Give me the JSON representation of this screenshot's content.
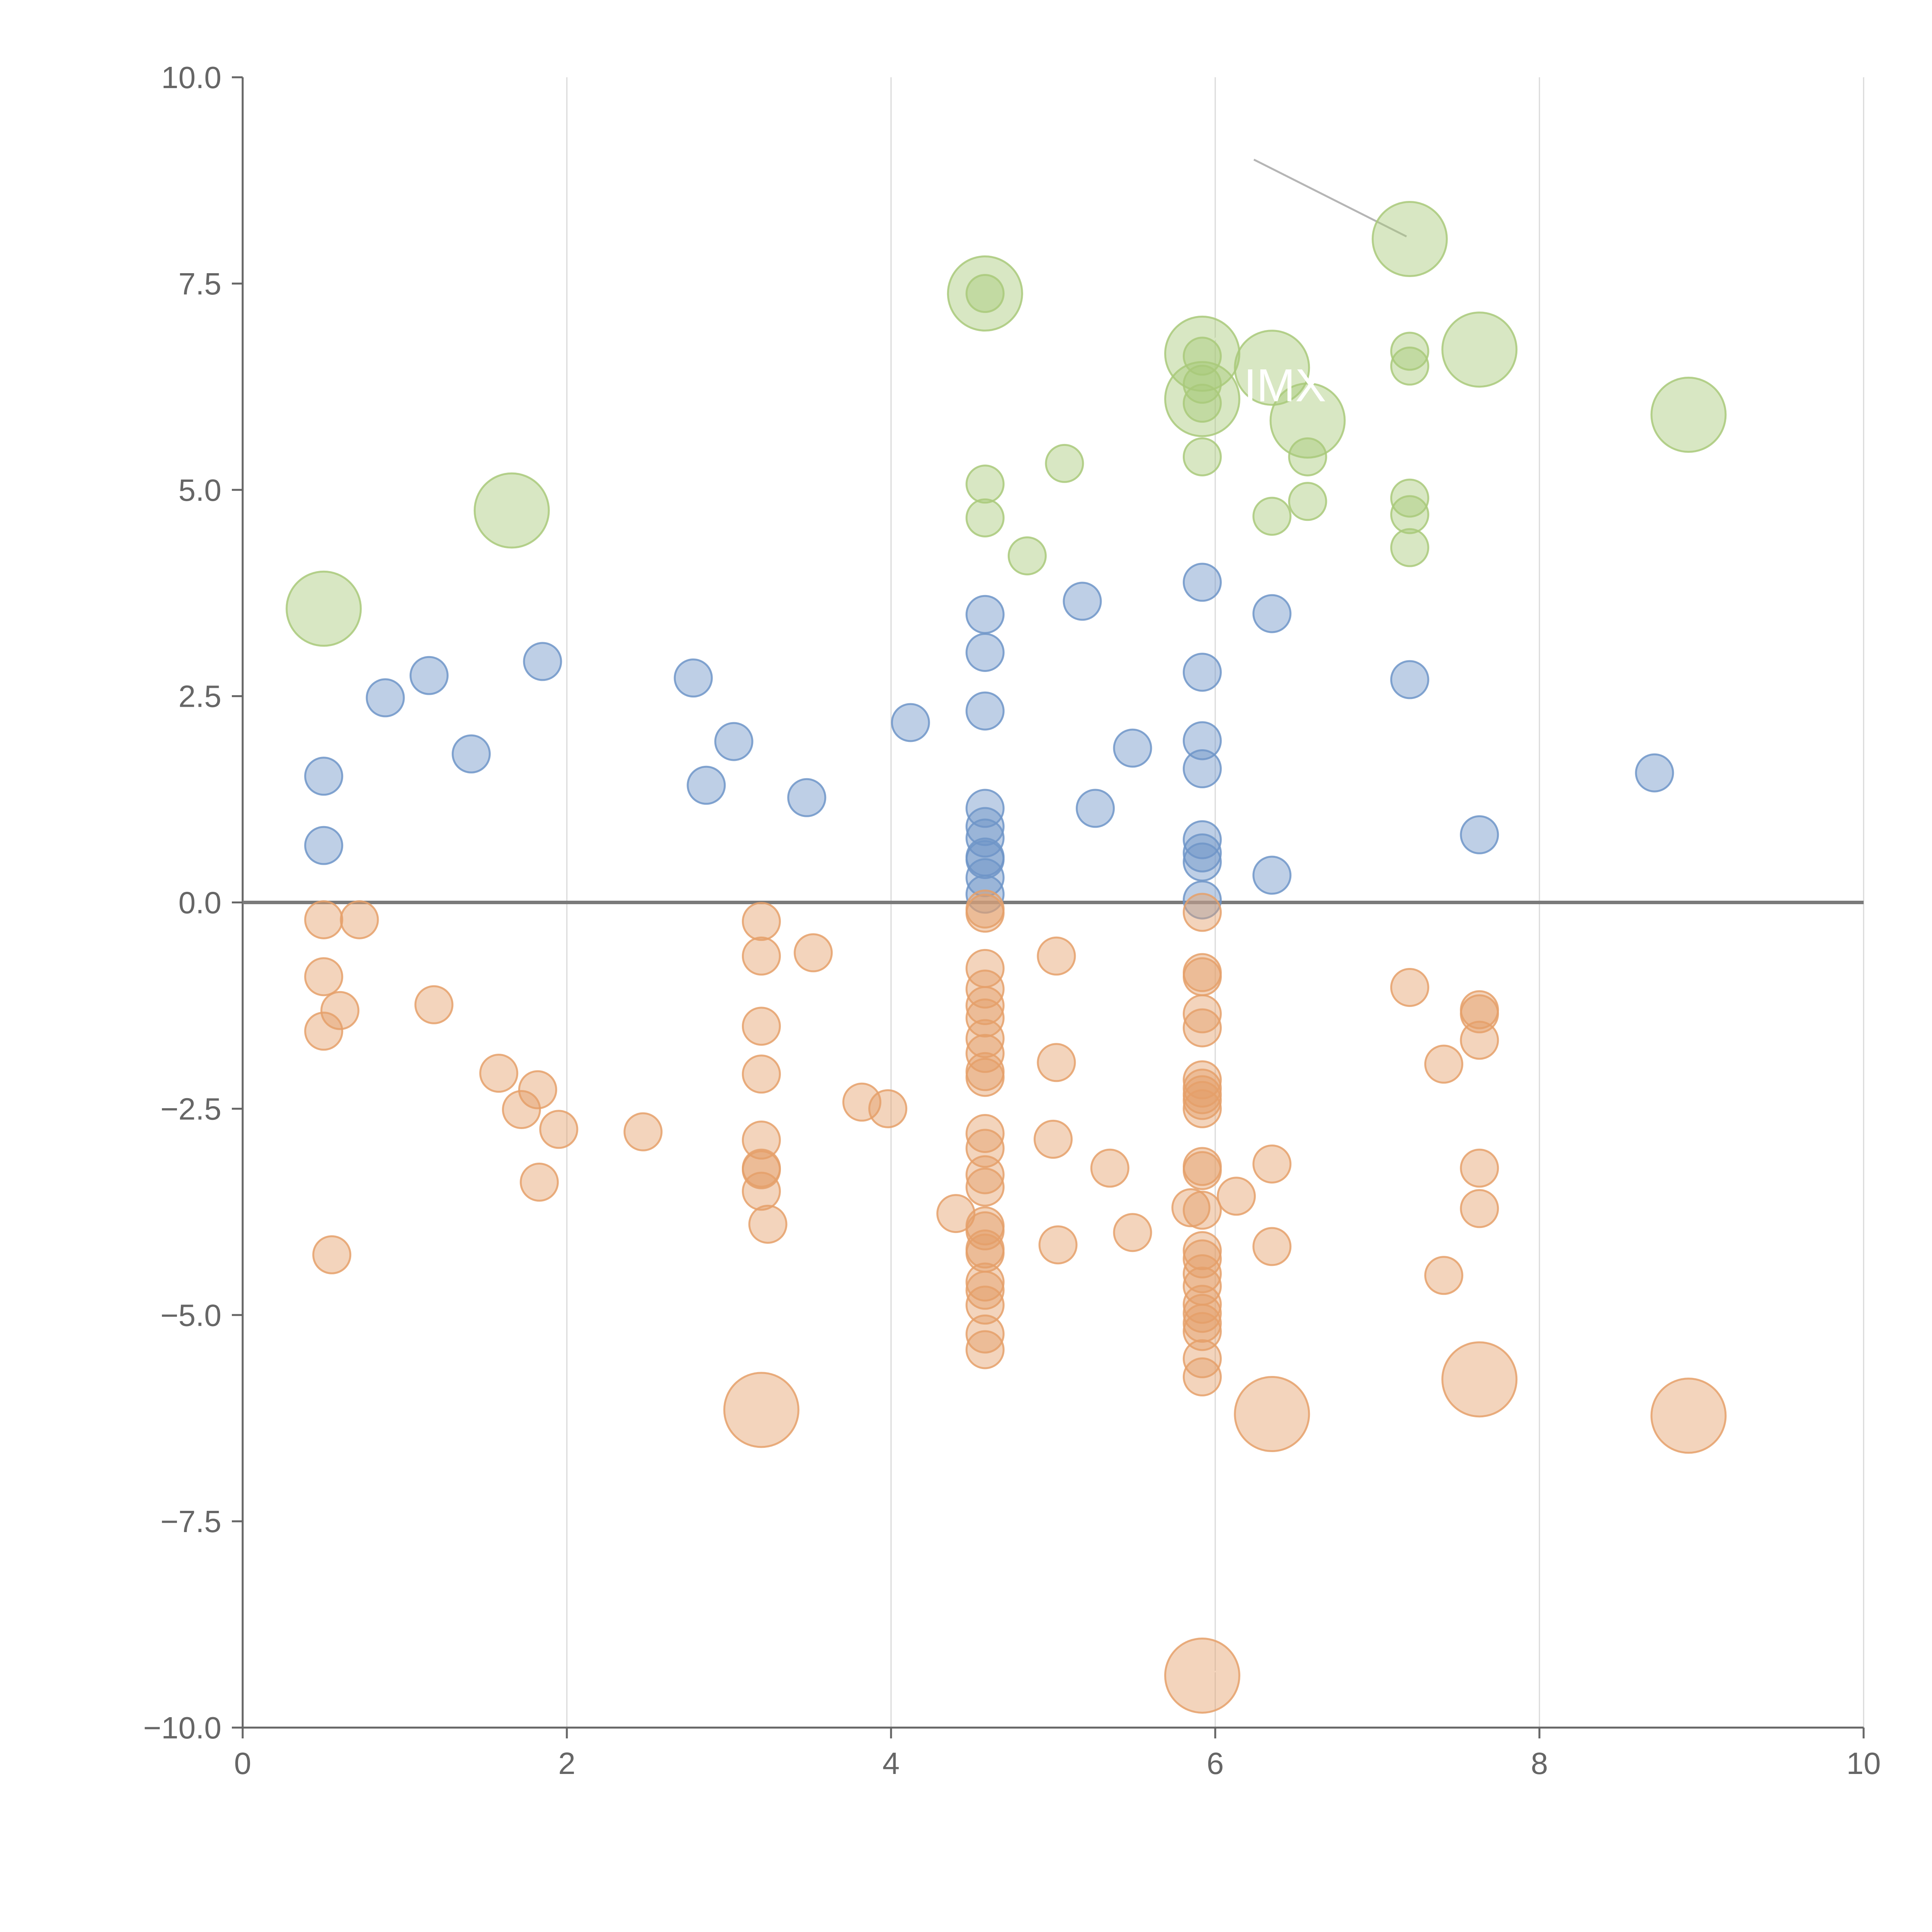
{
  "colors": {
    "blue": "#6f95c8",
    "green": "#a9c97a",
    "orange": "#e5a06a",
    "axis": "#666666",
    "grid": "#d9d9d9",
    "zero_line": "#7a7a7a",
    "leader": "#b5b5b5"
  },
  "chart_data": {
    "type": "scatter",
    "title": "",
    "xlabel": "",
    "ylabel": "",
    "xlim": [
      0,
      10
    ],
    "ylim": [
      -10,
      10
    ],
    "grid": "vertical",
    "legend": "none",
    "x_ticks": [
      "0",
      "2",
      "4",
      "6",
      "8",
      "10"
    ],
    "y_ticks": [
      "10.0",
      "7.5",
      "5.0",
      "2.5",
      "0.0",
      "−2.5",
      "−5.0",
      "−7.5",
      "−10.0"
    ],
    "series": [
      {
        "name": "blue",
        "color": "#6f95c8",
        "points": [
          {
            "x": 0.5,
            "y": 1.53,
            "s": 1
          },
          {
            "x": 0.5,
            "y": 0.69,
            "s": 1
          },
          {
            "x": 0.88,
            "y": 2.48,
            "s": 1
          },
          {
            "x": 1.15,
            "y": 2.75,
            "s": 1
          },
          {
            "x": 1.41,
            "y": 1.8,
            "s": 1
          },
          {
            "x": 1.85,
            "y": 2.92,
            "s": 1
          },
          {
            "x": 2.78,
            "y": 2.72,
            "s": 1
          },
          {
            "x": 2.86,
            "y": 1.42,
            "s": 1
          },
          {
            "x": 3.03,
            "y": 1.95,
            "s": 1
          },
          {
            "x": 3.48,
            "y": 1.27,
            "s": 1
          },
          {
            "x": 4.12,
            "y": 2.18,
            "s": 1
          },
          {
            "x": 4.58,
            "y": 3.49,
            "s": 1
          },
          {
            "x": 4.58,
            "y": 3.03,
            "s": 1
          },
          {
            "x": 4.58,
            "y": 2.32,
            "s": 1
          },
          {
            "x": 4.58,
            "y": 1.14,
            "s": 1
          },
          {
            "x": 4.58,
            "y": 0.92,
            "s": 1
          },
          {
            "x": 4.58,
            "y": 0.78,
            "s": 1
          },
          {
            "x": 4.58,
            "y": 0.55,
            "s": 1
          },
          {
            "x": 4.58,
            "y": 0.52,
            "s": 1
          },
          {
            "x": 4.58,
            "y": 0.3,
            "s": 1
          },
          {
            "x": 4.58,
            "y": 0.1,
            "s": 1
          },
          {
            "x": 5.18,
            "y": 3.65,
            "s": 1
          },
          {
            "x": 5.26,
            "y": 1.14,
            "s": 1
          },
          {
            "x": 5.49,
            "y": 1.87,
            "s": 1
          },
          {
            "x": 5.92,
            "y": 3.88,
            "s": 1
          },
          {
            "x": 5.92,
            "y": 2.79,
            "s": 1
          },
          {
            "x": 5.92,
            "y": 1.96,
            "s": 1
          },
          {
            "x": 5.92,
            "y": 1.62,
            "s": 1
          },
          {
            "x": 5.92,
            "y": 0.76,
            "s": 1
          },
          {
            "x": 5.92,
            "y": 0.6,
            "s": 1
          },
          {
            "x": 5.92,
            "y": 0.49,
            "s": 1
          },
          {
            "x": 5.92,
            "y": 0.03,
            "s": 1
          },
          {
            "x": 6.35,
            "y": 3.5,
            "s": 1
          },
          {
            "x": 6.35,
            "y": 0.33,
            "s": 1
          },
          {
            "x": 7.2,
            "y": 2.7,
            "s": 1
          },
          {
            "x": 7.63,
            "y": 0.82,
            "s": 1
          },
          {
            "x": 8.71,
            "y": 1.57,
            "s": 1
          }
        ]
      },
      {
        "name": "green",
        "color": "#a9c97a",
        "points": [
          {
            "x": 0.5,
            "y": 3.56,
            "s": 2
          },
          {
            "x": 1.66,
            "y": 4.75,
            "s": 2
          },
          {
            "x": 4.58,
            "y": 7.38,
            "s": 2
          },
          {
            "x": 4.58,
            "y": 7.38,
            "s": 1
          },
          {
            "x": 4.58,
            "y": 5.07,
            "s": 1
          },
          {
            "x": 4.58,
            "y": 4.66,
            "s": 1
          },
          {
            "x": 4.84,
            "y": 4.2,
            "s": 1
          },
          {
            "x": 5.07,
            "y": 5.32,
            "s": 1
          },
          {
            "x": 5.92,
            "y": 6.65,
            "s": 2
          },
          {
            "x": 5.92,
            "y": 6.62,
            "s": 1
          },
          {
            "x": 5.92,
            "y": 6.1,
            "s": 2
          },
          {
            "x": 5.92,
            "y": 6.28,
            "s": 1
          },
          {
            "x": 5.92,
            "y": 6.05,
            "s": 1
          },
          {
            "x": 5.92,
            "y": 5.4,
            "s": 1
          },
          {
            "x": 6.35,
            "y": 6.48,
            "s": 2
          },
          {
            "x": 6.35,
            "y": 4.68,
            "s": 1
          },
          {
            "x": 6.57,
            "y": 5.84,
            "s": 2
          },
          {
            "x": 6.57,
            "y": 5.4,
            "s": 1
          },
          {
            "x": 6.57,
            "y": 4.86,
            "s": 1
          },
          {
            "x": 7.2,
            "y": 8.04,
            "s": 2
          },
          {
            "x": 7.2,
            "y": 6.68,
            "s": 1
          },
          {
            "x": 7.2,
            "y": 6.5,
            "s": 1
          },
          {
            "x": 7.2,
            "y": 4.9,
            "s": 1
          },
          {
            "x": 7.2,
            "y": 4.7,
            "s": 1
          },
          {
            "x": 7.2,
            "y": 4.3,
            "s": 1
          },
          {
            "x": 7.63,
            "y": 6.7,
            "s": 2
          },
          {
            "x": 8.92,
            "y": 5.91,
            "s": 2
          }
        ]
      },
      {
        "name": "orange",
        "color": "#e5a06a",
        "points": [
          {
            "x": 0.5,
            "y": -0.21,
            "s": 1
          },
          {
            "x": 0.72,
            "y": -0.21,
            "s": 1
          },
          {
            "x": 0.5,
            "y": -0.9,
            "s": 1
          },
          {
            "x": 0.6,
            "y": -1.31,
            "s": 1
          },
          {
            "x": 0.5,
            "y": -1.56,
            "s": 1
          },
          {
            "x": 0.55,
            "y": -4.27,
            "s": 1
          },
          {
            "x": 1.18,
            "y": -1.24,
            "s": 1
          },
          {
            "x": 1.58,
            "y": -2.07,
            "s": 1
          },
          {
            "x": 1.82,
            "y": -2.27,
            "s": 1
          },
          {
            "x": 1.72,
            "y": -2.51,
            "s": 1
          },
          {
            "x": 1.95,
            "y": -2.75,
            "s": 1
          },
          {
            "x": 1.83,
            "y": -3.39,
            "s": 1
          },
          {
            "x": 2.47,
            "y": -2.78,
            "s": 1
          },
          {
            "x": 3.2,
            "y": -0.23,
            "s": 1
          },
          {
            "x": 3.2,
            "y": -0.65,
            "s": 1
          },
          {
            "x": 3.52,
            "y": -0.61,
            "s": 1
          },
          {
            "x": 3.2,
            "y": -1.5,
            "s": 1
          },
          {
            "x": 3.2,
            "y": -2.08,
            "s": 1
          },
          {
            "x": 3.2,
            "y": -2.88,
            "s": 1
          },
          {
            "x": 3.2,
            "y": -3.22,
            "s": 1
          },
          {
            "x": 3.2,
            "y": -3.24,
            "s": 1
          },
          {
            "x": 3.2,
            "y": -3.5,
            "s": 1
          },
          {
            "x": 3.24,
            "y": -3.9,
            "s": 1
          },
          {
            "x": 3.2,
            "y": -6.15,
            "s": 2
          },
          {
            "x": 3.82,
            "y": -2.42,
            "s": 1
          },
          {
            "x": 3.98,
            "y": -2.5,
            "s": 1
          },
          {
            "x": 4.4,
            "y": -3.77,
            "s": 1
          },
          {
            "x": 4.58,
            "y": -0.08,
            "s": 1
          },
          {
            "x": 4.58,
            "y": -0.13,
            "s": 1
          },
          {
            "x": 4.58,
            "y": -0.8,
            "s": 1
          },
          {
            "x": 4.58,
            "y": -1.05,
            "s": 1
          },
          {
            "x": 4.58,
            "y": -1.25,
            "s": 1
          },
          {
            "x": 4.58,
            "y": -1.4,
            "s": 1
          },
          {
            "x": 4.58,
            "y": -1.65,
            "s": 1
          },
          {
            "x": 4.58,
            "y": -1.83,
            "s": 1
          },
          {
            "x": 4.58,
            "y": -2.05,
            "s": 1
          },
          {
            "x": 4.58,
            "y": -2.12,
            "s": 1
          },
          {
            "x": 4.58,
            "y": -2.8,
            "s": 1
          },
          {
            "x": 4.58,
            "y": -2.98,
            "s": 1
          },
          {
            "x": 4.58,
            "y": -3.3,
            "s": 1
          },
          {
            "x": 4.58,
            "y": -3.45,
            "s": 1
          },
          {
            "x": 4.58,
            "y": -3.92,
            "s": 1
          },
          {
            "x": 4.58,
            "y": -3.98,
            "s": 1
          },
          {
            "x": 4.58,
            "y": -4.2,
            "s": 1
          },
          {
            "x": 4.58,
            "y": -4.25,
            "s": 1
          },
          {
            "x": 4.58,
            "y": -4.6,
            "s": 1
          },
          {
            "x": 4.58,
            "y": -4.7,
            "s": 1
          },
          {
            "x": 4.58,
            "y": -4.88,
            "s": 1
          },
          {
            "x": 4.58,
            "y": -5.23,
            "s": 1
          },
          {
            "x": 4.58,
            "y": -5.42,
            "s": 1
          },
          {
            "x": 5.02,
            "y": -0.65,
            "s": 1
          },
          {
            "x": 5.02,
            "y": -1.94,
            "s": 1
          },
          {
            "x": 5.0,
            "y": -2.87,
            "s": 1
          },
          {
            "x": 5.03,
            "y": -4.15,
            "s": 1
          },
          {
            "x": 5.35,
            "y": -3.22,
            "s": 1
          },
          {
            "x": 5.49,
            "y": -4.0,
            "s": 1
          },
          {
            "x": 5.92,
            "y": -0.12,
            "s": 1
          },
          {
            "x": 5.92,
            "y": -0.85,
            "s": 1
          },
          {
            "x": 5.92,
            "y": -0.9,
            "s": 1
          },
          {
            "x": 5.92,
            "y": -1.35,
            "s": 1
          },
          {
            "x": 5.92,
            "y": -1.52,
            "s": 1
          },
          {
            "x": 5.92,
            "y": -2.15,
            "s": 1
          },
          {
            "x": 5.92,
            "y": -2.25,
            "s": 1
          },
          {
            "x": 5.92,
            "y": -2.33,
            "s": 1
          },
          {
            "x": 5.92,
            "y": -2.4,
            "s": 1
          },
          {
            "x": 5.92,
            "y": -2.5,
            "s": 1
          },
          {
            "x": 5.92,
            "y": -3.2,
            "s": 1
          },
          {
            "x": 5.92,
            "y": -3.25,
            "s": 1
          },
          {
            "x": 5.85,
            "y": -3.7,
            "s": 1
          },
          {
            "x": 5.92,
            "y": -3.73,
            "s": 1
          },
          {
            "x": 5.92,
            "y": -4.22,
            "s": 1
          },
          {
            "x": 5.92,
            "y": -4.32,
            "s": 1
          },
          {
            "x": 5.92,
            "y": -4.5,
            "s": 1
          },
          {
            "x": 5.92,
            "y": -4.65,
            "s": 1
          },
          {
            "x": 5.92,
            "y": -4.87,
            "s": 1
          },
          {
            "x": 5.92,
            "y": -4.98,
            "s": 1
          },
          {
            "x": 5.92,
            "y": -5.1,
            "s": 1
          },
          {
            "x": 5.92,
            "y": -5.2,
            "s": 1
          },
          {
            "x": 5.92,
            "y": -5.53,
            "s": 1
          },
          {
            "x": 5.92,
            "y": -5.75,
            "s": 1
          },
          {
            "x": 5.92,
            "y": -9.37,
            "s": 2
          },
          {
            "x": 6.13,
            "y": -3.56,
            "s": 1
          },
          {
            "x": 6.35,
            "y": -3.17,
            "s": 1
          },
          {
            "x": 6.35,
            "y": -4.17,
            "s": 1
          },
          {
            "x": 6.35,
            "y": -6.2,
            "s": 2
          },
          {
            "x": 7.2,
            "y": -1.03,
            "s": 1
          },
          {
            "x": 7.41,
            "y": -1.96,
            "s": 1
          },
          {
            "x": 7.63,
            "y": -1.3,
            "s": 1
          },
          {
            "x": 7.63,
            "y": -1.35,
            "s": 1
          },
          {
            "x": 7.63,
            "y": -1.67,
            "s": 1
          },
          {
            "x": 7.63,
            "y": -3.22,
            "s": 1
          },
          {
            "x": 7.63,
            "y": -3.71,
            "s": 1
          },
          {
            "x": 7.41,
            "y": -4.52,
            "s": 1
          },
          {
            "x": 7.63,
            "y": -5.78,
            "s": 2
          },
          {
            "x": 8.92,
            "y": -6.22,
            "s": 2
          }
        ]
      }
    ],
    "annotations": [
      {
        "text": "IMX",
        "x": 6.43,
        "y": 6.27
      }
    ]
  }
}
